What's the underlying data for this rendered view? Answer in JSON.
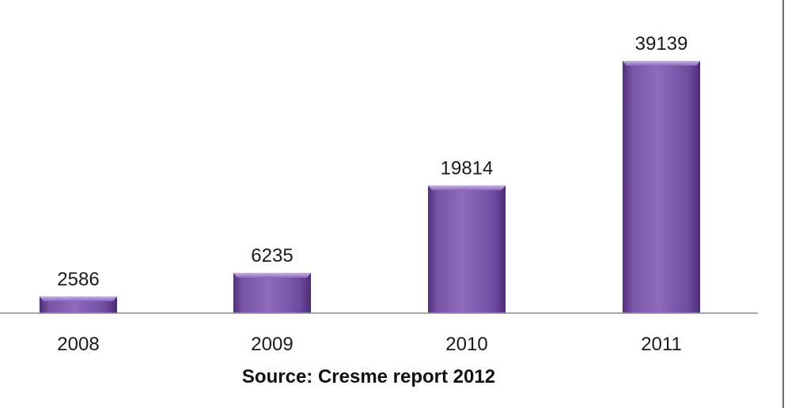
{
  "chart_data": {
    "type": "bar",
    "categories": [
      "2008",
      "2009",
      "2010",
      "2011"
    ],
    "values": [
      2586,
      6235,
      19814,
      39139
    ],
    "data_labels": [
      "2586",
      "6235",
      "19814",
      "39139"
    ],
    "title": "",
    "xlabel": "",
    "ylabel": "",
    "ylim": [
      0,
      41000
    ],
    "grid": false,
    "legend": "none",
    "source": "Source: Cresme report 2012",
    "bar_color": "#7b55aa",
    "bar_color_dark": "#5b3a88",
    "bar_color_light": "#9c7cc8"
  }
}
